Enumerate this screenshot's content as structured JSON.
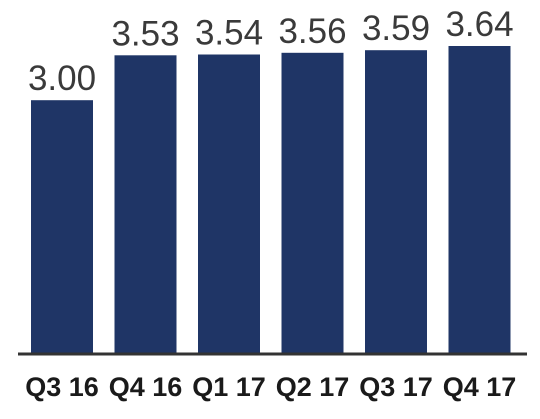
{
  "chart_data": {
    "type": "bar",
    "categories": [
      "Q3 16",
      "Q4 16",
      "Q1 17",
      "Q2 17",
      "Q3 17",
      "Q4 17"
    ],
    "values": [
      3.0,
      3.53,
      3.54,
      3.56,
      3.59,
      3.64
    ],
    "value_labels": [
      "3.00",
      "3.53",
      "3.54",
      "3.56",
      "3.59",
      "3.64"
    ],
    "title": "",
    "xlabel": "",
    "ylabel": "",
    "ylim": [
      0,
      3.64
    ],
    "grid": false,
    "bar_color": "#1f3566",
    "axis_color": "#333333"
  }
}
